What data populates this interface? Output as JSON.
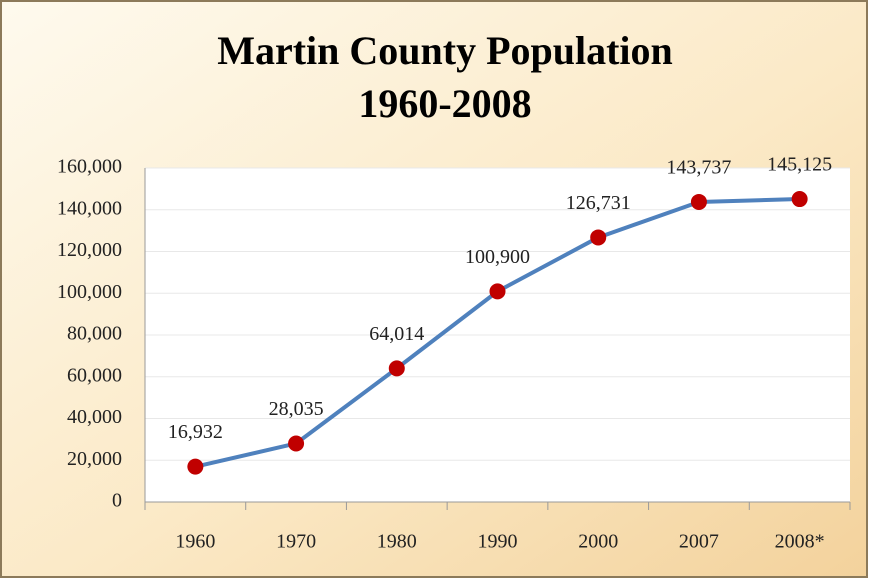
{
  "chart_data": {
    "type": "line",
    "title": [
      "Martin County Population",
      "1960-2008"
    ],
    "categories": [
      "1960",
      "1970",
      "1980",
      "1990",
      "2000",
      "2007",
      "2008*"
    ],
    "values": [
      16932,
      28035,
      64014,
      100900,
      126731,
      143737,
      145125
    ],
    "value_labels": [
      "16,932",
      "28,035",
      "64,014",
      "100,900",
      "126,731",
      "143,737",
      "145,125"
    ],
    "color": "#4f81bd",
    "marker_color": "#c00000",
    "ylim": [
      0,
      160000
    ],
    "yticks": [
      0,
      {
        "value": 20000,
        "label": "20,000"
      },
      {
        "value": 40000,
        "label": "40,000"
      },
      {
        "value": 60000,
        "label": "60,000"
      },
      {
        "value": 80000,
        "label": "80,000"
      },
      {
        "value": 100000,
        "label": "100,000"
      },
      {
        "value": 120000,
        "label": "120,000"
      },
      {
        "value": 140000,
        "label": "140,000"
      },
      {
        "value": 160000,
        "label": "160,000"
      }
    ],
    "grid": true
  }
}
